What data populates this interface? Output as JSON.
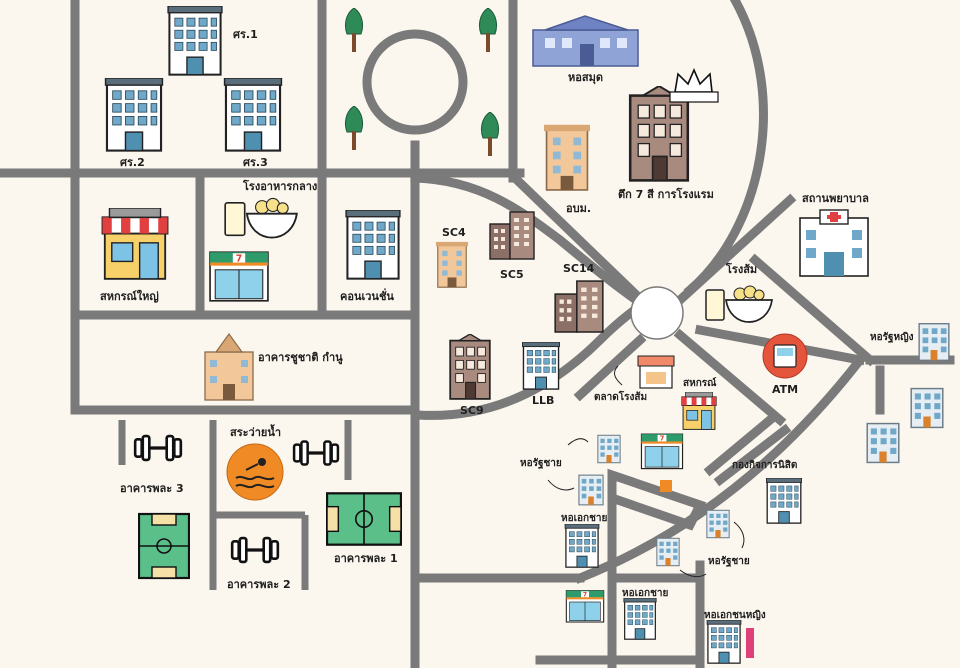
{
  "map": {
    "labels": {
      "faculty_1": "ศร.1",
      "faculty_2": "ศร.2",
      "faculty_3": "ศร.3",
      "library": "หอสมุด",
      "hotel_building": "ตึก 7 สี การโรงแรม",
      "orn_building": "อบม.",
      "canteen": "โรงอาหารกลาง",
      "convention": "คอนเวนชั่น",
      "coop_big": "สหกรณ์ใหญ่",
      "sc4": "SC4",
      "sc5": "SC5",
      "sc14": "SC14",
      "sc9": "SC9",
      "llb": "LLB",
      "hospital": "สถานพยาบาล",
      "rongsom": "โรงส้ม",
      "chuchart": "อาคารชูชาติ กำนู",
      "atm": "ATM",
      "dorm_f_top": "หอรัฐหญิง",
      "market": "ตลาดโรงส้ม",
      "coop_small": "สหกรณ์",
      "dorm_m_1": "หอรัฐชาย",
      "student_fund": "กองกิจการนิสิต",
      "pool": "สระว่ายน้ำ",
      "gym_3": "อาคารพละ 3",
      "gym_1": "อาคารพละ 1",
      "gym_2": "อาคารพละ 2",
      "private_dorm_m": "หอเอกชาย",
      "dorm_m_2": "หอรัฐชาย",
      "private_dorm_m_2": "หอเอกชาย",
      "private_dorm_f": "หอเอกชนหญิง"
    },
    "colors": {
      "background": "#fbf6ee",
      "road": "#7a7a7a",
      "building_blue": "#6fa8c8",
      "tree": "#2e8b57",
      "awning_red": "#e04040",
      "brown_building": "#a98a7f",
      "field_green": "#5bbf8a",
      "pool_orange": "#f08a24",
      "atm_red": "#e5553c"
    },
    "icons": {
      "building": "office-building-icon",
      "tree": "tree-icon",
      "shop": "shop-icon",
      "food": "food-bowl-icon",
      "dumbbell": "dumbbell-icon",
      "field": "football-field-icon",
      "pool": "swimming-pool-icon",
      "hospital": "hospital-icon",
      "atm": "atm-icon",
      "crown": "crown-icon"
    }
  }
}
